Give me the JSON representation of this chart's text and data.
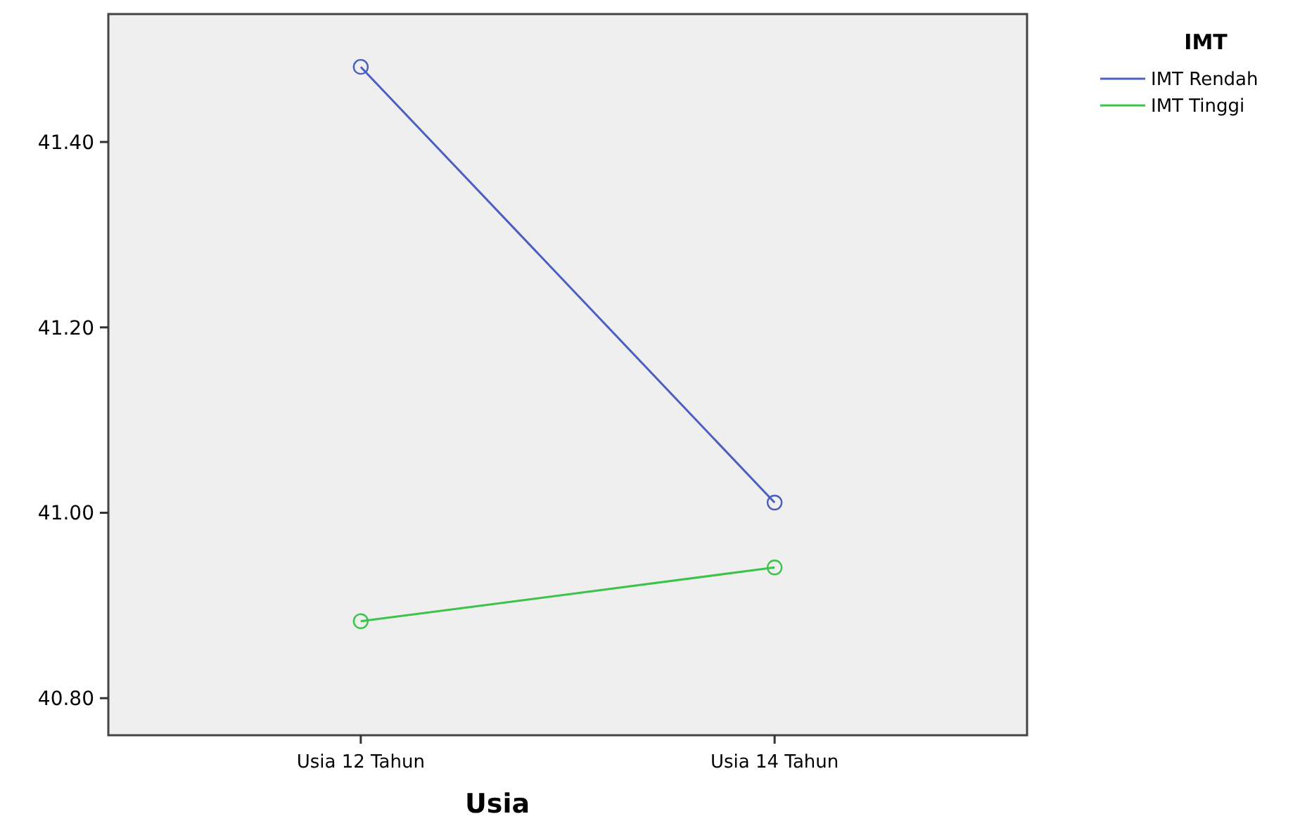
{
  "chart_data": {
    "type": "line",
    "xlabel": "Usia",
    "legend_title": "IMT",
    "categories": [
      "Usia 12 Tahun",
      "Usia 14 Tahun"
    ],
    "series": [
      {
        "name": "IMT Rendah",
        "color": "#4a5fc1",
        "values": [
          41.481,
          41.011
        ]
      },
      {
        "name": "IMT Tinggi",
        "color": "#3cc34a",
        "values": [
          40.883,
          40.941
        ]
      }
    ],
    "ylim": [
      40.76,
      41.538
    ],
    "yticks": [
      {
        "value": 40.8,
        "label": "40.80"
      },
      {
        "value": 41.0,
        "label": "41.00"
      },
      {
        "value": 41.2,
        "label": "41.20"
      },
      {
        "value": 41.4,
        "label": "41.40"
      }
    ],
    "marker": "circle",
    "legend": "top right",
    "grid": false
  }
}
